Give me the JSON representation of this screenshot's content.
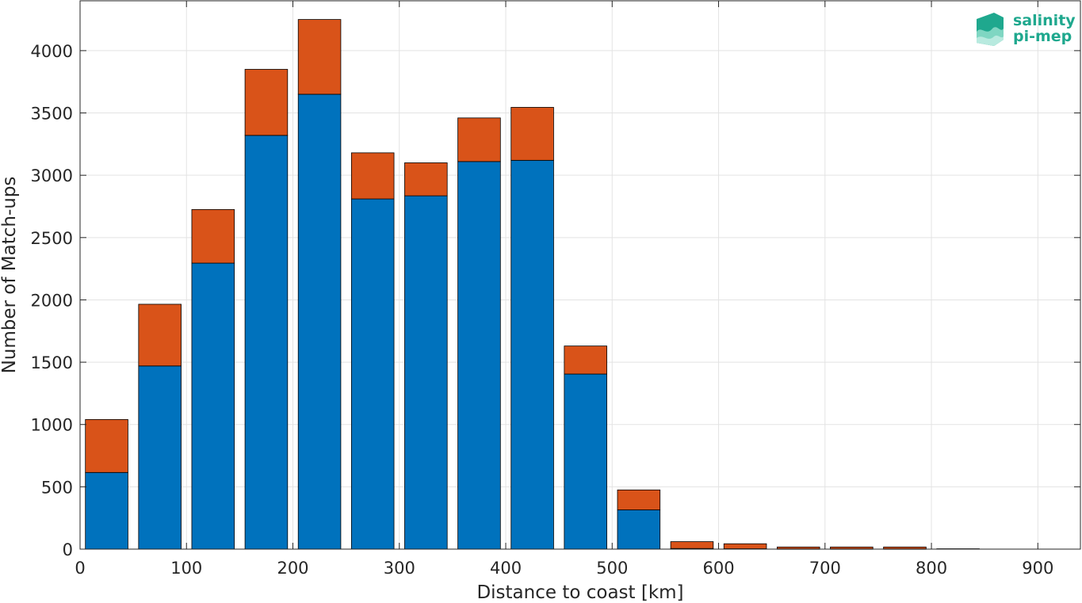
{
  "chart_data": {
    "type": "bar",
    "stacked": true,
    "title": "",
    "xlabel": "Distance to coast [km]",
    "ylabel": "Number of Match-ups",
    "xlim": [
      0,
      940
    ],
    "ylim": [
      0,
      4400
    ],
    "xticks": [
      0,
      100,
      200,
      300,
      400,
      500,
      600,
      700,
      800,
      900
    ],
    "yticks": [
      0,
      500,
      1000,
      1500,
      2000,
      2500,
      3000,
      3500,
      4000
    ],
    "grid": true,
    "bin_width": 50,
    "x": [
      25,
      75,
      125,
      175,
      225,
      275,
      325,
      375,
      425,
      475,
      525,
      575,
      625,
      675,
      725,
      775,
      825
    ],
    "series": [
      {
        "color": "#0072bd",
        "values": [
          615,
          1470,
          2295,
          3320,
          3650,
          2810,
          2835,
          3110,
          3120,
          1405,
          315,
          5,
          3,
          2,
          2,
          2,
          0
        ]
      },
      {
        "color": "#d95319",
        "values": [
          425,
          495,
          430,
          530,
          600,
          370,
          265,
          350,
          425,
          225,
          160,
          55,
          40,
          15,
          15,
          15,
          3
        ]
      }
    ]
  },
  "logo": {
    "line1": "salinity",
    "line2": "pi-mep",
    "color": "#1fa88e"
  }
}
